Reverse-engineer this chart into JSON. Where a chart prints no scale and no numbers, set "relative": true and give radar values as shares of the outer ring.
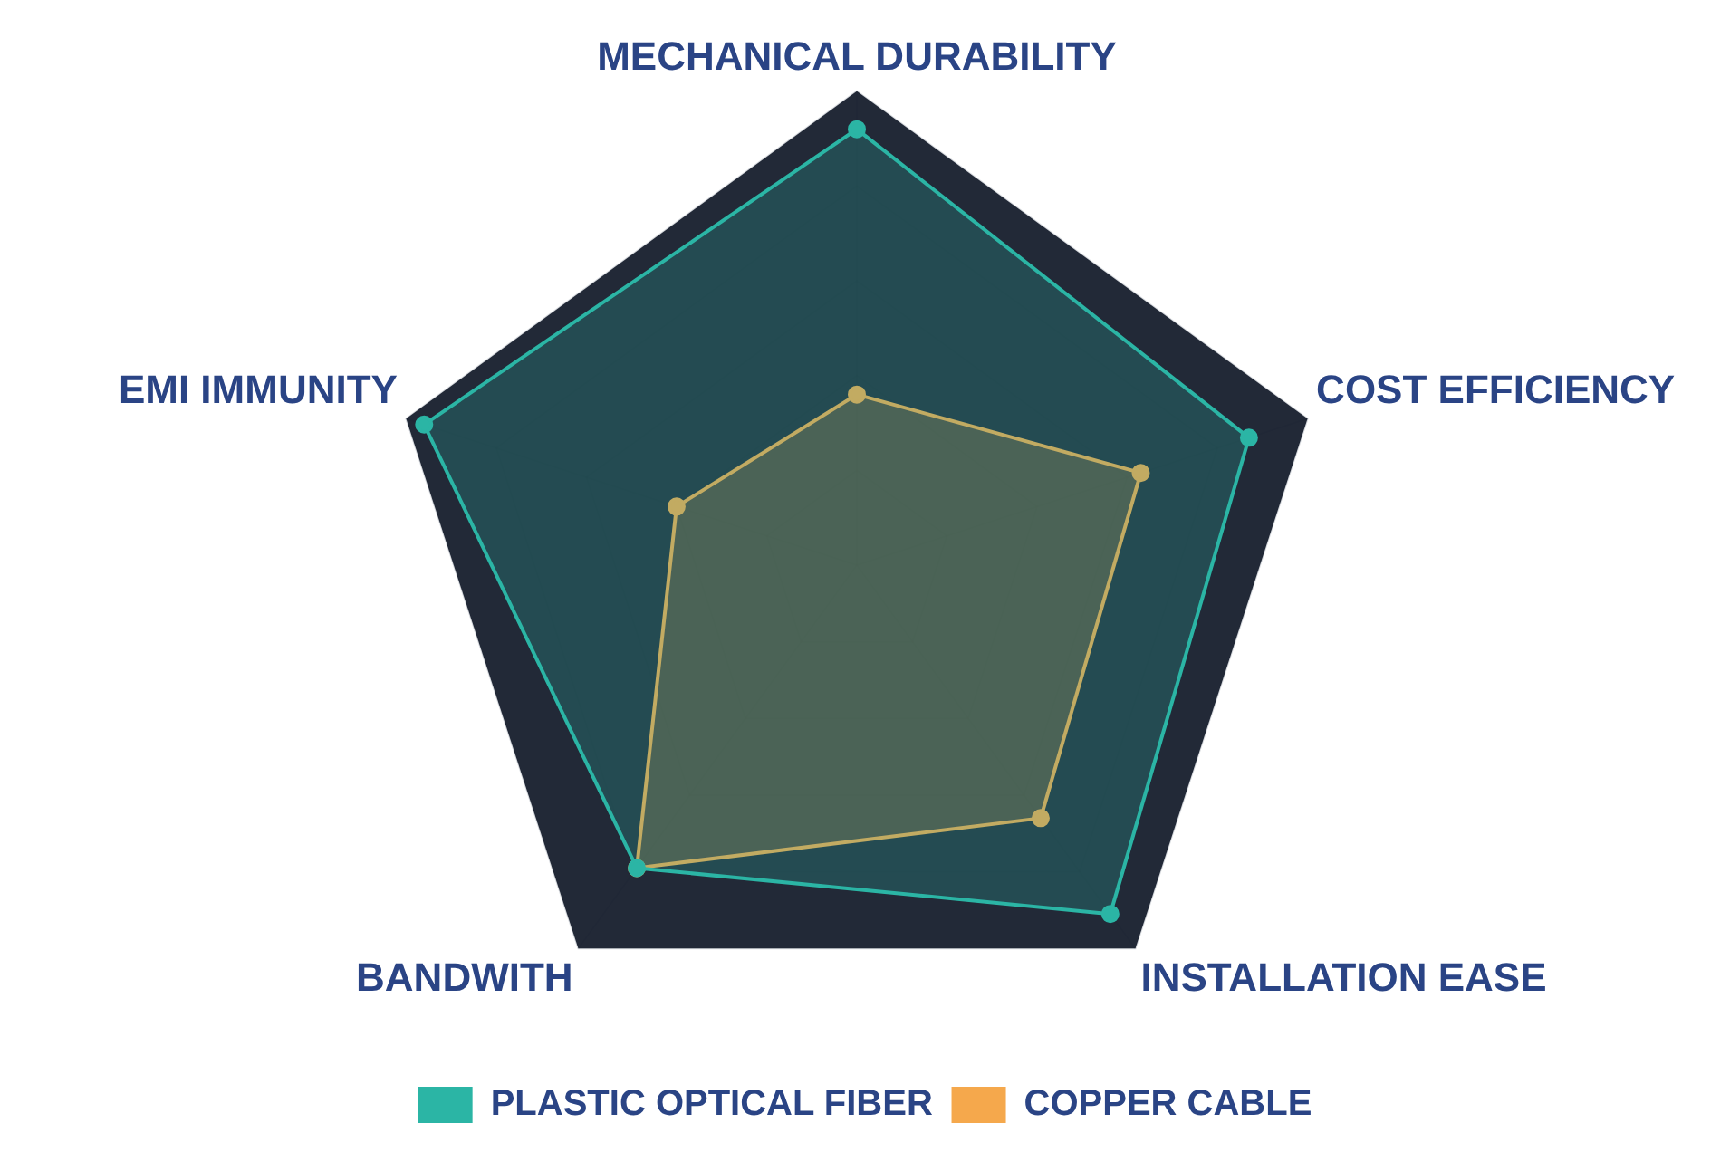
{
  "chart_data": {
    "type": "radar",
    "relative": true,
    "categories": [
      "MECHANICAL DURABILITY",
      "COST EFFICIENCY",
      "INSTALLATION EASE",
      "BANDWITH",
      "EMI IMMUNITY"
    ],
    "series": [
      {
        "name": "PLASTIC OPTICAL FIBER",
        "color": "#2bb5a5",
        "values": [
          0.92,
          0.87,
          0.91,
          0.79,
          0.96
        ]
      },
      {
        "name": "COPPER CABLE",
        "color": "#f5a84c",
        "values": [
          0.36,
          0.63,
          0.66,
          0.79,
          0.4
        ]
      }
    ],
    "legend": "bottom",
    "marker": "circle",
    "grid": true
  }
}
